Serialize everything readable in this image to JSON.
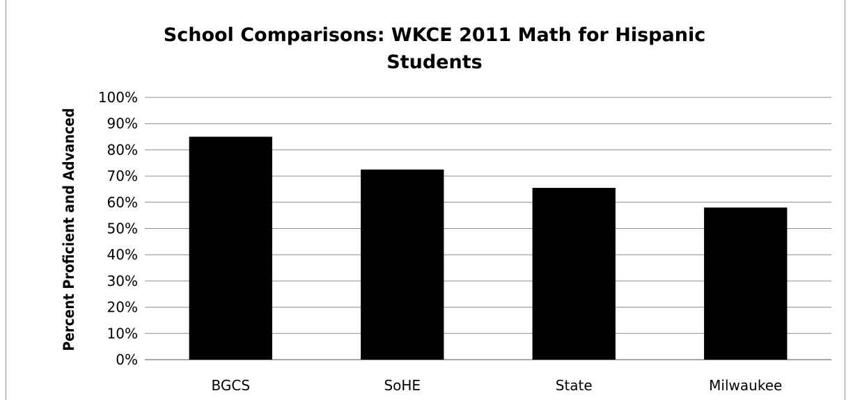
{
  "chart_data": {
    "type": "bar",
    "title_lines": [
      "School Comparisons:  WKCE 2011 Math for Hispanic",
      "Students"
    ],
    "ylabel": "Percent Proficient and Advanced",
    "xlabel": "",
    "categories": [
      "BGCS",
      "SoHE",
      "State",
      "Milwaukee"
    ],
    "values": [
      85,
      72.5,
      65.5,
      58
    ],
    "ylim": [
      0,
      100
    ],
    "y_tick_step": 10,
    "y_tick_format": "percent",
    "grid": true,
    "legend": "none",
    "bar_color": "#000000",
    "grid_color": "#8c8c8c"
  }
}
